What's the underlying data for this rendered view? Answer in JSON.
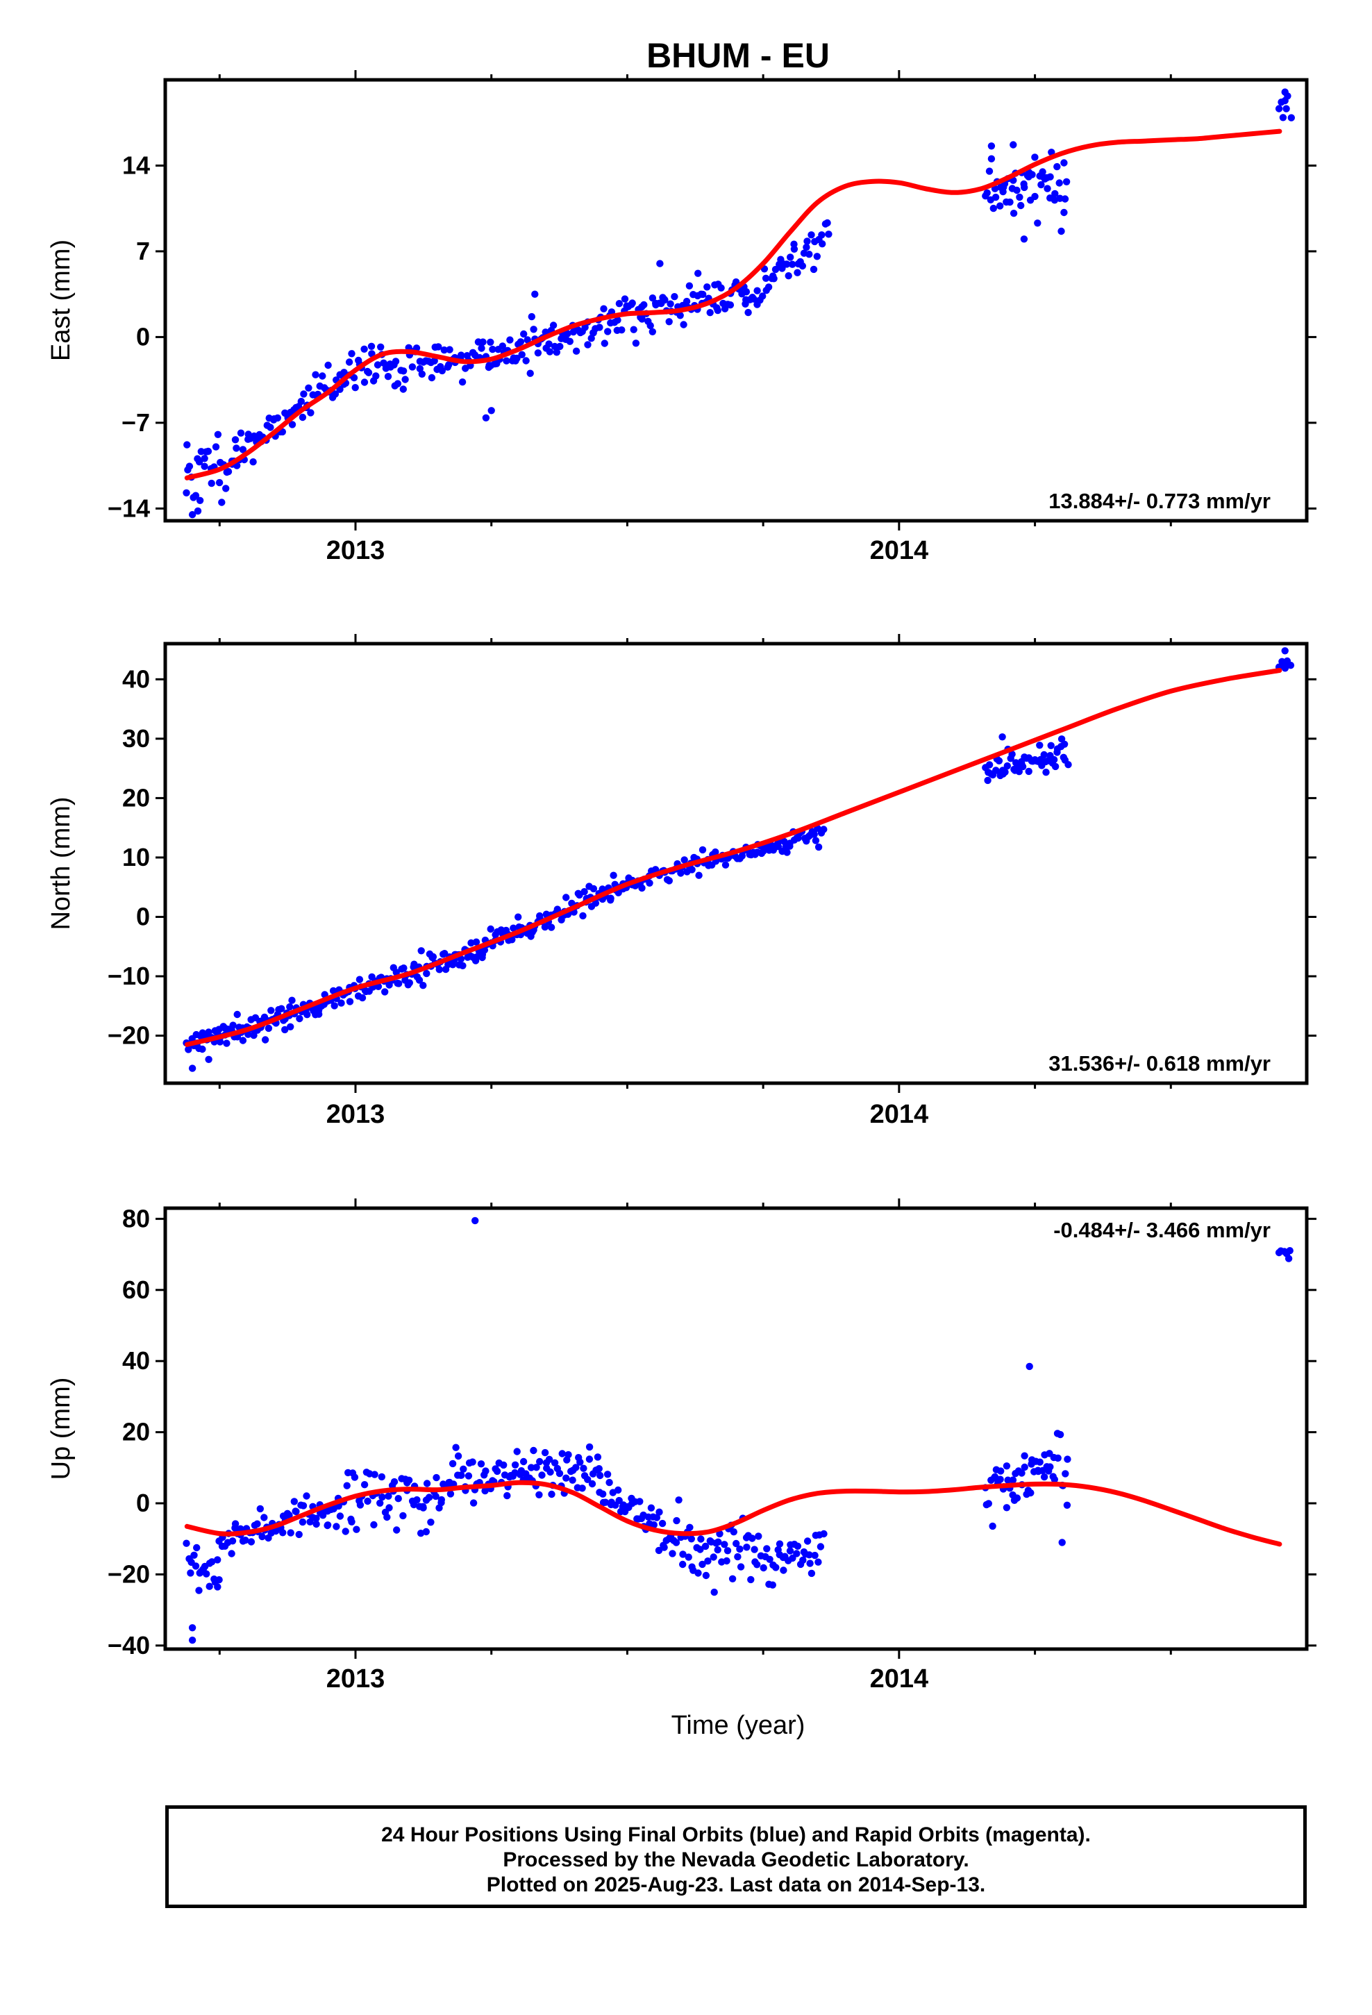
{
  "title": "BHUM - EU",
  "footer": {
    "line1": "24 Hour Positions Using Final Orbits (blue) and Rapid Orbits (magenta).",
    "line2": "Processed by the Nevada Geodetic Laboratory.",
    "line3": "Plotted on 2025-Aug-23. Last data on 2014-Sep-13."
  },
  "colors": {
    "final_orbits": "#0000ff",
    "rapid_orbits": "#ff00ff",
    "fit": "#ff0000"
  },
  "chart_data": [
    {
      "type": "scatter",
      "component": "East",
      "ylabel": "East (mm)",
      "xlabel": "",
      "xlim": [
        2012.65,
        2014.75
      ],
      "ylim": [
        -15,
        21
      ],
      "yticks": [
        -14,
        -7,
        0,
        7,
        14
      ],
      "xticks": [
        2013,
        2014
      ],
      "rate_label": "13.884+/- 0.773 mm/yr",
      "rate_position": "bottom-right",
      "fit": {
        "x": [
          2012.69,
          2012.75,
          2012.8,
          2012.85,
          2012.9,
          2012.95,
          2013.0,
          2013.05,
          2013.1,
          2013.15,
          2013.2,
          2013.25,
          2013.3,
          2013.35,
          2013.4,
          2013.45,
          2013.5,
          2013.55,
          2013.6,
          2013.65,
          2013.7,
          2013.75,
          2013.8,
          2013.85,
          2013.9,
          2013.95,
          2014.0,
          2014.05,
          2014.1,
          2014.15,
          2014.2,
          2014.25,
          2014.3,
          2014.35,
          2014.4,
          2014.45,
          2014.5,
          2014.55,
          2014.6,
          2014.65,
          2014.7
        ],
        "y": [
          -11.5,
          -10.8,
          -9.5,
          -7.8,
          -6.0,
          -4.5,
          -2.7,
          -1.4,
          -1.2,
          -1.6,
          -2.0,
          -1.8,
          -1.0,
          0.0,
          0.9,
          1.5,
          1.9,
          2.0,
          2.2,
          2.8,
          4.0,
          6.0,
          8.6,
          11.0,
          12.3,
          12.7,
          12.6,
          12.1,
          11.8,
          12.1,
          13.0,
          14.1,
          15.0,
          15.6,
          15.9,
          16.0,
          16.1,
          16.2,
          16.4,
          16.6,
          16.8
        ]
      },
      "segments": [
        {
          "x0": 2012.69,
          "x1": 2012.78,
          "yfrom": -11.5,
          "yto": -9.8,
          "n": 30,
          "noise": 1.6,
          "seed": 11
        },
        {
          "x0": 2012.78,
          "x1": 2012.98,
          "yfrom": -9.6,
          "yto": -3.0,
          "n": 60,
          "noise": 1.1,
          "seed": 12
        },
        {
          "x0": 2012.98,
          "x1": 2013.25,
          "yfrom": -2.7,
          "yto": -1.8,
          "n": 80,
          "noise": 1.0,
          "seed": 13
        },
        {
          "x0": 2013.25,
          "x1": 2013.5,
          "yfrom": -1.6,
          "yto": 1.8,
          "n": 75,
          "noise": 1.0,
          "seed": 14
        },
        {
          "x0": 2013.5,
          "x1": 2013.72,
          "yfrom": 1.9,
          "yto": 3.5,
          "n": 70,
          "noise": 1.0,
          "seed": 15
        },
        {
          "x0": 2013.72,
          "x1": 2013.87,
          "yfrom": 3.6,
          "yto": 8.0,
          "n": 45,
          "noise": 1.0,
          "seed": 16
        },
        {
          "x0": 2014.16,
          "x1": 2014.31,
          "yfrom": 12.3,
          "yto": 12.0,
          "n": 55,
          "noise": 1.6,
          "seed": 17
        },
        {
          "x0": 2014.7,
          "x1": 2014.72,
          "yfrom": 18.5,
          "yto": 18.5,
          "n": 6,
          "noise": 0.7,
          "seed": 18
        }
      ],
      "outliers": [
        {
          "x": 2012.69,
          "y": -8.8
        },
        {
          "x": 2012.7,
          "y": -14.5
        },
        {
          "x": 2012.71,
          "y": -14.2
        },
        {
          "x": 2013.24,
          "y": -6.6
        },
        {
          "x": 2013.25,
          "y": -6.0
        },
        {
          "x": 2013.33,
          "y": 3.5
        },
        {
          "x": 2013.56,
          "y": 6.0
        },
        {
          "x": 2013.63,
          "y": 5.2
        },
        {
          "x": 2014.23,
          "y": 8.0
        },
        {
          "x": 2014.21,
          "y": 15.7
        },
        {
          "x": 2014.17,
          "y": 15.6
        },
        {
          "x": 2014.71,
          "y": 20.0
        },
        {
          "x": 2014.71,
          "y": 19.3
        }
      ]
    },
    {
      "type": "scatter",
      "component": "North",
      "ylabel": "North (mm)",
      "xlabel": "",
      "xlim": [
        2012.65,
        2014.75
      ],
      "ylim": [
        -28,
        46
      ],
      "yticks": [
        -20,
        -10,
        0,
        10,
        20,
        30,
        40
      ],
      "xticks": [
        2013,
        2014
      ],
      "rate_label": "31.536+/- 0.618 mm/yr",
      "rate_position": "bottom-right",
      "fit": {
        "x": [
          2012.69,
          2012.8,
          2012.9,
          2013.0,
          2013.1,
          2013.2,
          2013.3,
          2013.4,
          2013.5,
          2013.6,
          2013.7,
          2013.8,
          2013.9,
          2014.0,
          2014.1,
          2014.2,
          2014.3,
          2014.4,
          2014.5,
          2014.6,
          2014.7
        ],
        "y": [
          -21.5,
          -19.0,
          -15.5,
          -12.0,
          -9.5,
          -6.0,
          -2.5,
          1.5,
          5.5,
          8.5,
          11.0,
          14.0,
          17.5,
          21.0,
          24.5,
          28.0,
          31.5,
          35.0,
          38.0,
          40.0,
          41.5
        ]
      },
      "segments": [
        {
          "x0": 2012.69,
          "x1": 2012.88,
          "yfrom": -21.8,
          "yto": -16.5,
          "n": 70,
          "noise": 1.2,
          "seed": 21
        },
        {
          "x0": 2012.88,
          "x1": 2013.18,
          "yfrom": -16.3,
          "yto": -7.0,
          "n": 95,
          "noise": 1.2,
          "seed": 22
        },
        {
          "x0": 2013.18,
          "x1": 2013.48,
          "yfrom": -6.8,
          "yto": 4.8,
          "n": 100,
          "noise": 1.2,
          "seed": 23
        },
        {
          "x0": 2013.48,
          "x1": 2013.86,
          "yfrom": 5.0,
          "yto": 14.3,
          "n": 110,
          "noise": 1.0,
          "seed": 24
        },
        {
          "x0": 2014.16,
          "x1": 2014.31,
          "yfrom": 24.0,
          "yto": 28.0,
          "n": 55,
          "noise": 1.4,
          "seed": 25
        },
        {
          "x0": 2014.7,
          "x1": 2014.72,
          "yfrom": 42.5,
          "yto": 42.5,
          "n": 6,
          "noise": 0.8,
          "seed": 26
        }
      ],
      "outliers": [
        {
          "x": 2012.7,
          "y": -25.5
        },
        {
          "x": 2012.73,
          "y": -24.0
        },
        {
          "x": 2014.19,
          "y": 30.3
        },
        {
          "x": 2014.71,
          "y": 44.8
        }
      ]
    },
    {
      "type": "scatter",
      "component": "Up",
      "ylabel": "Up (mm)",
      "xlabel": "Time (year)",
      "xlim": [
        2012.65,
        2014.75
      ],
      "ylim": [
        -41,
        83
      ],
      "yticks": [
        -40,
        -20,
        0,
        20,
        40,
        60,
        80
      ],
      "xticks": [
        2013,
        2014
      ],
      "rate_label": "-0.484+/- 3.466 mm/yr",
      "rate_position": "top-right",
      "fit": {
        "x": [
          2012.69,
          2012.75,
          2012.8,
          2012.85,
          2012.9,
          2012.95,
          2013.0,
          2013.05,
          2013.1,
          2013.15,
          2013.2,
          2013.25,
          2013.3,
          2013.35,
          2013.4,
          2013.45,
          2013.5,
          2013.55,
          2013.6,
          2013.65,
          2013.7,
          2013.75,
          2013.8,
          2013.85,
          2013.9,
          2013.95,
          2014.0,
          2014.05,
          2014.1,
          2014.15,
          2014.2,
          2014.25,
          2014.3,
          2014.35,
          2014.4,
          2014.45,
          2014.5,
          2014.55,
          2014.6,
          2014.65,
          2014.7
        ],
        "y": [
          -6.5,
          -8.5,
          -8.2,
          -6.5,
          -3.5,
          -0.5,
          2.0,
          3.5,
          4.0,
          3.8,
          4.5,
          5.0,
          5.8,
          5.3,
          3.0,
          -1.0,
          -5.0,
          -7.5,
          -8.5,
          -8.0,
          -5.5,
          -2.0,
          1.0,
          2.8,
          3.4,
          3.4,
          3.2,
          3.3,
          3.8,
          4.5,
          5.0,
          5.4,
          5.3,
          4.5,
          3.0,
          0.8,
          -1.8,
          -4.5,
          -7.2,
          -9.5,
          -11.5
        ]
      },
      "segments": [
        {
          "x0": 2012.69,
          "x1": 2012.75,
          "yfrom": -18.0,
          "yto": -20.0,
          "n": 22,
          "noise": 4.0,
          "seed": 31
        },
        {
          "x0": 2012.75,
          "x1": 2012.95,
          "yfrom": -10.0,
          "yto": -2.0,
          "n": 60,
          "noise": 3.5,
          "seed": 32
        },
        {
          "x0": 2012.95,
          "x1": 2013.18,
          "yfrom": 0.0,
          "yto": 2.0,
          "n": 70,
          "noise": 5.5,
          "seed": 33
        },
        {
          "x0": 2013.18,
          "x1": 2013.45,
          "yfrom": 7.0,
          "yto": 10.0,
          "n": 90,
          "noise": 4.5,
          "seed": 34
        },
        {
          "x0": 2013.45,
          "x1": 2013.62,
          "yfrom": 2.0,
          "yto": -12.0,
          "n": 55,
          "noise": 5.0,
          "seed": 35
        },
        {
          "x0": 2013.62,
          "x1": 2013.86,
          "yfrom": -14.0,
          "yto": -14.0,
          "n": 75,
          "noise": 4.5,
          "seed": 36
        },
        {
          "x0": 2014.16,
          "x1": 2014.31,
          "yfrom": 2.0,
          "yto": 10.0,
          "n": 55,
          "noise": 5.5,
          "seed": 37
        },
        {
          "x0": 2014.7,
          "x1": 2014.72,
          "yfrom": 70.0,
          "yto": 70.0,
          "n": 6,
          "noise": 1.5,
          "seed": 38
        }
      ],
      "outliers": [
        {
          "x": 2013.22,
          "y": 79.5
        },
        {
          "x": 2014.24,
          "y": 38.5
        },
        {
          "x": 2014.3,
          "y": -11.0
        },
        {
          "x": 2012.7,
          "y": -35.0
        },
        {
          "x": 2012.7,
          "y": -38.5
        },
        {
          "x": 2013.13,
          "y": -8.0
        },
        {
          "x": 2013.66,
          "y": -25.0
        }
      ]
    }
  ]
}
